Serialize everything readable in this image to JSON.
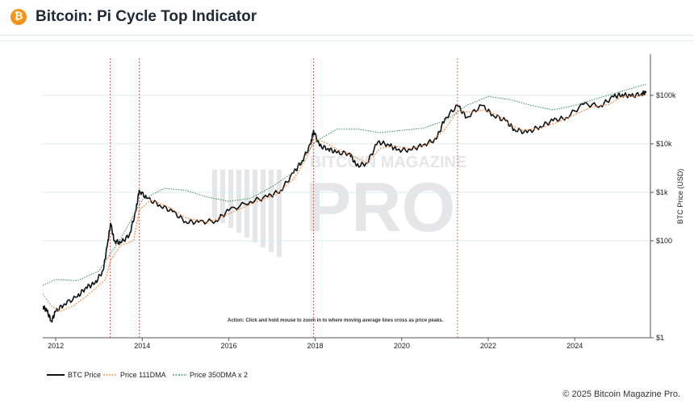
{
  "header": {
    "title": "Bitcoin: Pi Cycle Top Indicator",
    "logo_glyph": "₿",
    "logo_icon": "bitcoin-icon",
    "logo_color": "#f7931a"
  },
  "footer": {
    "copyright": "© 2025 Bitcoin Magazine Pro."
  },
  "watermark": {
    "line1": "BITCOIN MAGAZINE",
    "line2": "PRO"
  },
  "chart_data": {
    "type": "line",
    "title": "",
    "xlabel": "",
    "ylabel": "BTC Price (USD)",
    "y_scale": "log",
    "ylim": [
      1,
      1000000
    ],
    "xlim": [
      2011.7,
      2025.75
    ],
    "x_ticks": [
      "2012",
      "2014",
      "2016",
      "2018",
      "2020",
      "2022",
      "2024"
    ],
    "y_ticks": [
      {
        "value": 1,
        "label": "$1"
      },
      {
        "value": 100,
        "label": "$100"
      },
      {
        "value": 1000,
        "label": "$1k"
      },
      {
        "value": 10000,
        "label": "$10k"
      },
      {
        "value": 100000,
        "label": "$100k"
      }
    ],
    "grid": true,
    "legend_position": "bottom-left",
    "annotation": "Action: Click and hold mouse to zoom in to where moving average lines cross as price peaks.",
    "cross_dates": [
      2013.26,
      2013.93,
      2017.96,
      2021.29
    ],
    "cross_color": "#e0403a",
    "series": [
      {
        "name": "BTC Price",
        "color": "#111111",
        "x": [
          2011.7,
          2011.8,
          2011.9,
          2012.0,
          2012.2,
          2012.5,
          2012.7,
          2012.9,
          2013.1,
          2013.2,
          2013.27,
          2013.35,
          2013.5,
          2013.7,
          2013.85,
          2013.93,
          2014.1,
          2014.4,
          2014.7,
          2015.0,
          2015.3,
          2015.7,
          2016.0,
          2016.5,
          2016.9,
          2017.2,
          2017.5,
          2017.7,
          2017.9,
          2017.96,
          2018.1,
          2018.3,
          2018.5,
          2018.8,
          2018.95,
          2019.2,
          2019.45,
          2019.7,
          2019.9,
          2020.2,
          2020.5,
          2020.8,
          2021.0,
          2021.29,
          2021.5,
          2021.85,
          2022.1,
          2022.4,
          2022.6,
          2022.9,
          2023.2,
          2023.5,
          2023.8,
          2024.2,
          2024.6,
          2024.9,
          2025.1,
          2025.3,
          2025.55,
          2025.65
        ],
        "y": [
          4.5,
          3.5,
          2.2,
          3.5,
          5,
          7,
          11,
          13,
          25,
          90,
          230,
          100,
          90,
          130,
          400,
          1100,
          750,
          550,
          400,
          250,
          240,
          260,
          420,
          650,
          800,
          1100,
          2500,
          4500,
          10000,
          19000,
          9000,
          8000,
          6500,
          6400,
          3500,
          4000,
          11000,
          9500,
          7500,
          7500,
          9500,
          12500,
          33000,
          62000,
          35000,
          62000,
          40000,
          30000,
          20000,
          17000,
          23000,
          30000,
          35000,
          65000,
          62000,
          93000,
          105000,
          95000,
          110000,
          112000
        ]
      },
      {
        "name": "Price 111DMA",
        "color": "#f5873a",
        "x": [
          2011.7,
          2011.9,
          2012.1,
          2012.4,
          2012.7,
          2012.95,
          2013.15,
          2013.27,
          2013.5,
          2013.8,
          2013.93,
          2014.2,
          2014.6,
          2015.0,
          2015.5,
          2016.0,
          2016.6,
          2017.1,
          2017.5,
          2017.8,
          2017.96,
          2018.2,
          2018.6,
          2018.9,
          2019.2,
          2019.5,
          2019.8,
          2020.2,
          2020.6,
          2021.0,
          2021.29,
          2021.6,
          2021.9,
          2022.2,
          2022.5,
          2022.8,
          2023.2,
          2023.6,
          2024.0,
          2024.4,
          2024.8,
          2025.1,
          2025.4,
          2025.65
        ],
        "y": [
          8,
          4.5,
          3.5,
          4.5,
          7,
          11,
          16,
          40,
          80,
          100,
          430,
          700,
          500,
          300,
          240,
          360,
          620,
          900,
          1900,
          5000,
          12000,
          11000,
          7000,
          5500,
          4000,
          8000,
          9000,
          8000,
          9500,
          20000,
          47000,
          45000,
          50000,
          40000,
          25000,
          19000,
          21000,
          28000,
          40000,
          58000,
          65000,
          95000,
          95000,
          105000
        ]
      },
      {
        "name": "Price 350DMA x 2",
        "color": "#2f8a55",
        "x": [
          2011.7,
          2012.0,
          2012.5,
          2013.0,
          2013.5,
          2014.0,
          2014.5,
          2015.0,
          2015.5,
          2016.0,
          2016.5,
          2017.0,
          2017.5,
          2018.0,
          2018.5,
          2019.0,
          2019.5,
          2020.0,
          2020.5,
          2021.0,
          2021.5,
          2022.0,
          2022.5,
          2023.0,
          2023.5,
          2024.0,
          2024.5,
          2025.0,
          2025.65
        ],
        "y": [
          12,
          16,
          15,
          24,
          110,
          700,
          1200,
          1100,
          800,
          650,
          750,
          1300,
          2600,
          11000,
          20000,
          20000,
          17000,
          19000,
          21000,
          30000,
          62000,
          95000,
          82000,
          62000,
          50000,
          62000,
          85000,
          115000,
          170000
        ]
      }
    ]
  }
}
